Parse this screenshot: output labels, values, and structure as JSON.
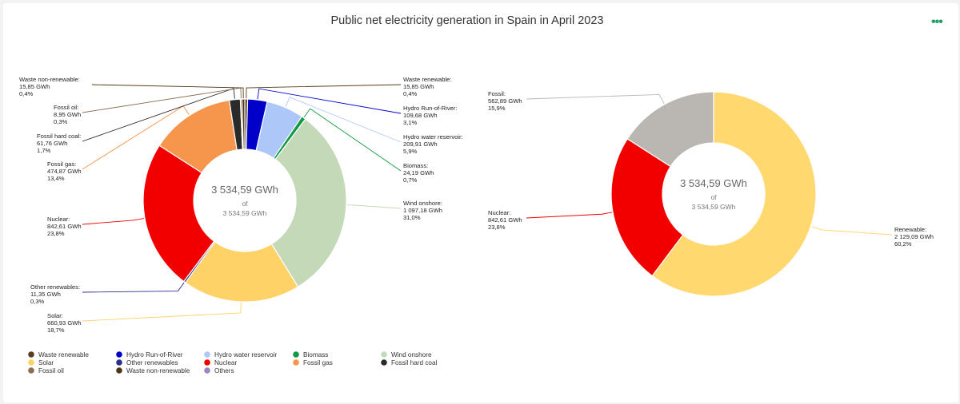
{
  "page": {
    "title": "Public net electricity generation in Spain in April 2023",
    "menu_icon": "more-dots-icon"
  },
  "chart_data": [
    {
      "type": "pie",
      "variant": "donut",
      "title": "Public net electricity generation in Spain in April 2023",
      "center": {
        "value": "3 534,59 GWh",
        "of": "of",
        "total": "3 534,59 GWh"
      },
      "unit": "GWh",
      "slices": [
        {
          "name": "Waste renewable",
          "display": "Waste renewable:",
          "value": 15.85,
          "gwh": "15,85 GWh",
          "pct": "0,4%",
          "color": "#5c3d1e"
        },
        {
          "name": "Hydro Run-of-River",
          "display": "Hydro Run-of-River:",
          "value": 109.68,
          "gwh": "109,68 GWh",
          "pct": "3,1%",
          "color": "#0000c8"
        },
        {
          "name": "Hydro water reservoir",
          "display": "Hydro water reservoir:",
          "value": 209.91,
          "gwh": "209,91 GWh",
          "pct": "5,9%",
          "color": "#adc8f8"
        },
        {
          "name": "Biomass",
          "display": "Biomass:",
          "value": 24.19,
          "gwh": "24,19 GWh",
          "pct": "0,7%",
          "color": "#119a44"
        },
        {
          "name": "Wind onshore",
          "display": "Wind onshore:",
          "value": 1097.18,
          "gwh": "1 097,18 GWh",
          "pct": "31,0%",
          "color": "#c3d9b8"
        },
        {
          "name": "Solar",
          "display": "Solar:",
          "value": 660.93,
          "gwh": "660,93 GWh",
          "pct": "18,7%",
          "color": "#ffd268"
        },
        {
          "name": "Other renewables",
          "display": "Other renewables:",
          "value": 11.35,
          "gwh": "11,35 GWh",
          "pct": "0,3%",
          "color": "#2b2f8c"
        },
        {
          "name": "Nuclear",
          "display": "Nuclear:",
          "value": 842.61,
          "gwh": "842,61 GWh",
          "pct": "23,8%",
          "color": "#f20000"
        },
        {
          "name": "Fossil gas",
          "display": "Fossil gas:",
          "value": 474.87,
          "gwh": "474,87 GWh",
          "pct": "13,4%",
          "color": "#f6964c"
        },
        {
          "name": "Fossil hard coal",
          "display": "Fossil hard coal:",
          "value": 61.76,
          "gwh": "61,76 GWh",
          "pct": "1,7%",
          "color": "#2a2a2a"
        },
        {
          "name": "Fossil oil",
          "display": "Fossil oil:",
          "value": 8.95,
          "gwh": "8,95 GWh",
          "pct": "0,3%",
          "color": "#8a6e50"
        },
        {
          "name": "Waste non-renewable",
          "display": "Waste non-renewable:",
          "value": 15.85,
          "gwh": "15,85 GWh",
          "pct": "0,4%",
          "color": "#4f3513"
        }
      ],
      "legend": {
        "placement": "bottom",
        "items": [
          {
            "name": "Waste renewable",
            "color": "#5c3d1e"
          },
          {
            "name": "Hydro Run-of-River",
            "color": "#0000c8"
          },
          {
            "name": "Hydro water reservoir",
            "color": "#adc8f8"
          },
          {
            "name": "Biomass",
            "color": "#119a44"
          },
          {
            "name": "Wind onshore",
            "color": "#c3d9b8"
          },
          {
            "name": "Solar",
            "color": "#ffd268"
          },
          {
            "name": "Other renewables",
            "color": "#2b2f8c"
          },
          {
            "name": "Nuclear",
            "color": "#f20000"
          },
          {
            "name": "Fossil gas",
            "color": "#f6964c"
          },
          {
            "name": "Fossil hard coal",
            "color": "#2a2a2a"
          },
          {
            "name": "Fossil oil",
            "color": "#8a6e50"
          },
          {
            "name": "Waste non-renewable",
            "color": "#4f3513"
          },
          {
            "name": "Others",
            "color": "#9d86c0"
          }
        ]
      }
    },
    {
      "type": "pie",
      "variant": "donut",
      "center": {
        "value": "3 534,59 GWh",
        "of": "of",
        "total": "3 534,59 GWh"
      },
      "unit": "GWh",
      "slices": [
        {
          "name": "Renewable",
          "display": "Renewable:",
          "value": 2129.09,
          "gwh": "2 129,09 GWh",
          "pct": "60,2%",
          "color": "#ffd86f"
        },
        {
          "name": "Nuclear",
          "display": "Nuclear:",
          "value": 842.61,
          "gwh": "842,61 GWh",
          "pct": "23,8%",
          "color": "#f20000"
        },
        {
          "name": "Fossil",
          "display": "Fossil:",
          "value": 562.89,
          "gwh": "562,89 GWh",
          "pct": "15,9%",
          "color": "#bab7b3"
        }
      ]
    }
  ]
}
